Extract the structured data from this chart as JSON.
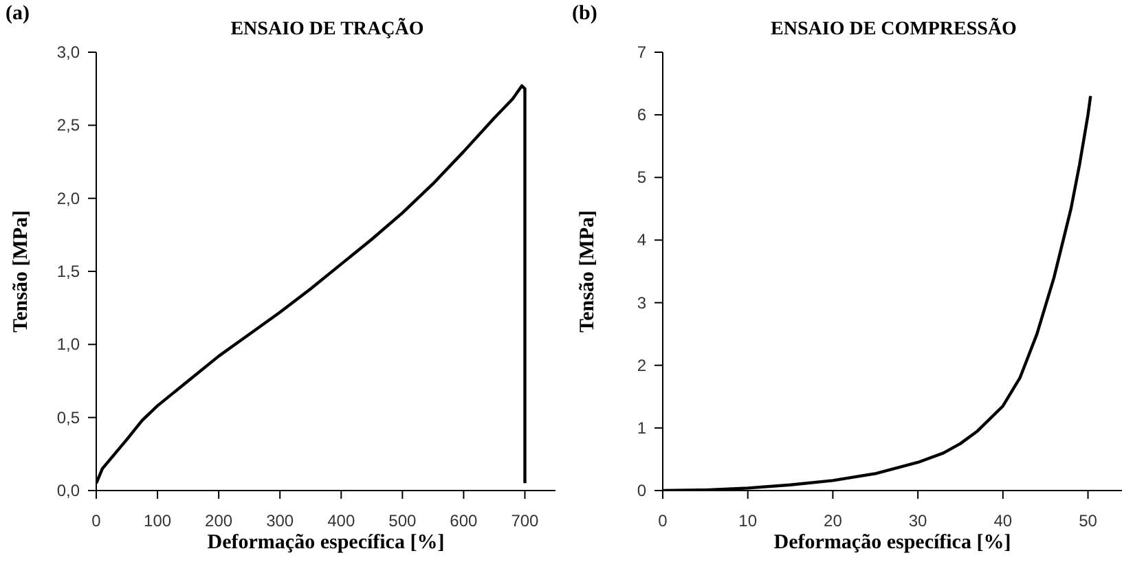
{
  "chart_data": [
    {
      "type": "line",
      "title": "ENSAIO DE TRAÇÃO",
      "xlabel": "Deformação específica [%]",
      "ylabel": "Tensão [MPa]",
      "annotations": [
        "(a)"
      ],
      "xlim": [
        0,
        750
      ],
      "xticks": [
        0,
        100,
        200,
        300,
        400,
        500,
        600,
        700
      ],
      "ylim": [
        0,
        3
      ],
      "yticks": [
        {
          "value": 0,
          "label": "0,0"
        },
        {
          "value": 0.5,
          "label": "0,5"
        },
        {
          "value": 1,
          "label": "1,0"
        },
        {
          "value": 1.5,
          "label": "1,5"
        },
        {
          "value": 2,
          "label": "2,0"
        },
        {
          "value": 2.5,
          "label": "2,5"
        },
        {
          "value": 3,
          "label": "3,0"
        }
      ],
      "grid": false,
      "legend": false,
      "marker": "none",
      "line_style": "solid",
      "series": [
        {
          "color": "#000000",
          "x": [
            0,
            10,
            30,
            50,
            75,
            100,
            150,
            200,
            250,
            300,
            350,
            400,
            450,
            500,
            550,
            600,
            650,
            680,
            695,
            700,
            700,
            700
          ],
          "values": [
            0.05,
            0.15,
            0.25,
            0.35,
            0.48,
            0.58,
            0.75,
            0.92,
            1.07,
            1.22,
            1.38,
            1.55,
            1.72,
            1.9,
            2.1,
            2.32,
            2.55,
            2.68,
            2.77,
            2.75,
            1.78,
            0.05
          ]
        }
      ]
    },
    {
      "type": "line",
      "title": "ENSAIO DE COMPRESSÃO",
      "xlabel": "Deformação específica [%]",
      "ylabel": "Tensão [MPa]",
      "annotations": [
        "(b)"
      ],
      "xlim": [
        0,
        54
      ],
      "xticks": [
        0,
        10,
        20,
        30,
        40,
        50
      ],
      "ylim": [
        0,
        7
      ],
      "yticks": [
        0,
        1,
        2,
        3,
        4,
        5,
        6,
        7
      ],
      "grid": false,
      "legend": false,
      "marker": "none",
      "line_style": "solid",
      "series": [
        {
          "color": "#000000",
          "x": [
            0,
            5,
            10,
            15,
            20,
            25,
            30,
            33,
            35,
            37,
            40,
            42,
            44,
            46,
            48,
            49,
            50,
            50.3
          ],
          "values": [
            0,
            0.01,
            0.04,
            0.09,
            0.16,
            0.27,
            0.45,
            0.6,
            0.75,
            0.95,
            1.35,
            1.8,
            2.5,
            3.4,
            4.5,
            5.2,
            6,
            6.3
          ]
        }
      ]
    }
  ]
}
